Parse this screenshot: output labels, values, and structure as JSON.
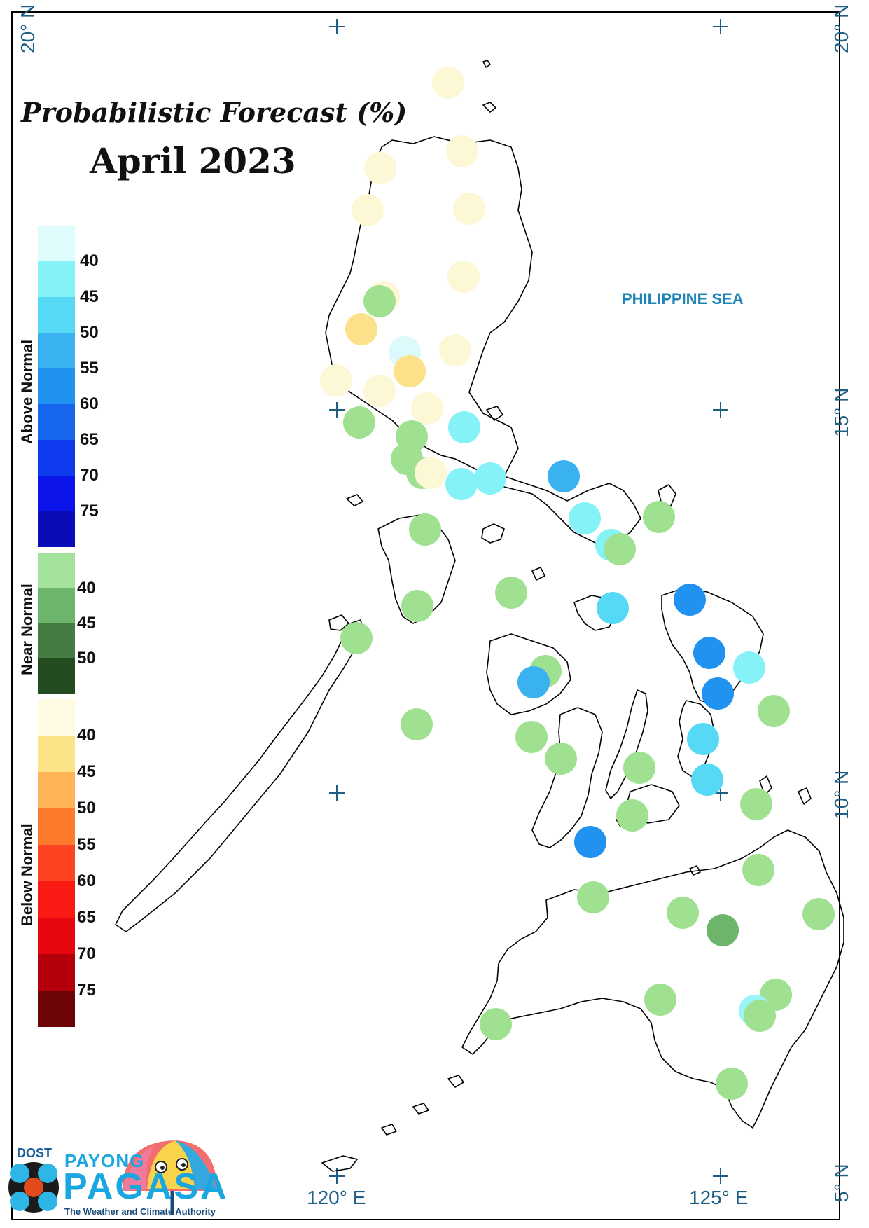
{
  "title": {
    "line1": "Probabilistic Forecast (%)",
    "line2": "April 2023"
  },
  "sea_label": "PHILIPPINE SEA",
  "coordinates": {
    "lat_20_left": "20° N",
    "lat_20_right": "20° N",
    "lat_15": "15° N",
    "lat_10": "10° N",
    "lat_5": "5° N",
    "lon_120": "120° E",
    "lon_125": "125° E"
  },
  "legend": {
    "above_normal": {
      "label": "Above Normal",
      "ticks": [
        "40",
        "45",
        "50",
        "55",
        "60",
        "65",
        "70",
        "75"
      ],
      "colors": [
        "#dffdfd",
        "#84f2f6",
        "#55d9f5",
        "#3bb2f0",
        "#2192ef",
        "#1667ee",
        "#0f3bee",
        "#0b14ea",
        "#0a0cb8"
      ]
    },
    "near_normal": {
      "label": "Near Normal",
      "ticks": [
        "40",
        "45",
        "50"
      ],
      "colors": [
        "#a3e39b",
        "#6cb56b",
        "#447c43",
        "#234d20"
      ]
    },
    "below_normal": {
      "label": "Below Normal",
      "ticks": [
        "40",
        "45",
        "50",
        "55",
        "60",
        "65",
        "70",
        "75"
      ],
      "colors": [
        "#fefbe2",
        "#fde388",
        "#fdb356",
        "#fd7a2d",
        "#fc4422",
        "#f91a14",
        "#e5060e",
        "#b3000b",
        "#6d0408"
      ]
    }
  },
  "logo": {
    "agency": "DOST",
    "name_top": "PAYONG",
    "name_main": "PAGASA",
    "tagline": "The Weather and Climate Authority"
  },
  "stations": [
    {
      "category": "below",
      "level": "<40",
      "color": "#fcf8d6"
    },
    {
      "category": "below",
      "level": "<40",
      "color": "#fcf8d6"
    },
    {
      "category": "below",
      "level": "<40",
      "color": "#fcf8d6"
    },
    {
      "category": "below",
      "level": "<40",
      "color": "#fcf8d6"
    },
    {
      "category": "below",
      "level": "<40",
      "color": "#fcf8d6"
    },
    {
      "category": "below",
      "level": "<40",
      "color": "#fcf8d6"
    },
    {
      "category": "below",
      "level": "<40",
      "color": "#fcf8d6"
    },
    {
      "category": "near",
      "level": "<40",
      "color": "#9fe191"
    },
    {
      "category": "below",
      "level": "45",
      "color": "#fde08a"
    },
    {
      "category": "above",
      "level": "<40",
      "color": "#dcf9fb"
    },
    {
      "category": "below",
      "level": "45",
      "color": "#fde08a"
    },
    {
      "category": "below",
      "level": "<40",
      "color": "#fcf8d6"
    },
    {
      "category": "below",
      "level": "<40",
      "color": "#fcf8d6"
    },
    {
      "category": "below",
      "level": "<40",
      "color": "#fcf8d6"
    },
    {
      "category": "below",
      "level": "<40",
      "color": "#fcf8d6"
    },
    {
      "category": "near",
      "level": "<40",
      "color": "#9fe191"
    },
    {
      "category": "near",
      "level": "<40",
      "color": "#9fe191"
    },
    {
      "category": "near",
      "level": "<40",
      "color": "#9fe191"
    },
    {
      "category": "near",
      "level": "<40",
      "color": "#9fe191"
    },
    {
      "category": "below",
      "level": "<40",
      "color": "#fcf8d6"
    },
    {
      "category": "above",
      "level": "40",
      "color": "#84f2f6"
    },
    {
      "category": "above",
      "level": "40",
      "color": "#84f2f6"
    },
    {
      "category": "above",
      "level": "40",
      "color": "#84f2f6"
    },
    {
      "category": "above",
      "level": "50",
      "color": "#3bb2f0"
    },
    {
      "category": "near",
      "level": "<40",
      "color": "#9fe191"
    },
    {
      "category": "above",
      "level": "40",
      "color": "#84f2f6"
    },
    {
      "category": "above",
      "level": "40",
      "color": "#84f2f6"
    },
    {
      "category": "near",
      "level": "<40",
      "color": "#9fe191"
    },
    {
      "category": "near",
      "level": "<40",
      "color": "#9fe191"
    },
    {
      "category": "near",
      "level": "<40",
      "color": "#9fe191"
    },
    {
      "category": "near",
      "level": "<40",
      "color": "#9fe191"
    },
    {
      "category": "above",
      "level": "45",
      "color": "#55d9f5"
    },
    {
      "category": "above",
      "level": "55",
      "color": "#2192ef"
    },
    {
      "category": "near",
      "level": "<40",
      "color": "#9fe191"
    },
    {
      "category": "near",
      "level": "<40",
      "color": "#9fe191"
    },
    {
      "category": "above",
      "level": "50",
      "color": "#3bb2f0"
    },
    {
      "category": "above",
      "level": "55",
      "color": "#2192ef"
    },
    {
      "category": "above",
      "level": "40",
      "color": "#84f2f6"
    },
    {
      "category": "above",
      "level": "55",
      "color": "#2192ef"
    },
    {
      "category": "near",
      "level": "<40",
      "color": "#9fe191"
    },
    {
      "category": "near",
      "level": "<40",
      "color": "#9fe191"
    },
    {
      "category": "near",
      "level": "<40",
      "color": "#9fe191"
    },
    {
      "category": "above",
      "level": "45",
      "color": "#55d9f5"
    },
    {
      "category": "near",
      "level": "<40",
      "color": "#9fe191"
    },
    {
      "category": "above",
      "level": "45",
      "color": "#55d9f5"
    },
    {
      "category": "near",
      "level": "<40",
      "color": "#9fe191"
    },
    {
      "category": "near",
      "level": "<40",
      "color": "#9fe191"
    },
    {
      "category": "near",
      "level": "<40",
      "color": "#9fe191"
    },
    {
      "category": "above",
      "level": "55",
      "color": "#2192ef"
    },
    {
      "category": "near",
      "level": "<40",
      "color": "#9fe191"
    },
    {
      "category": "near",
      "level": "<40",
      "color": "#9fe191"
    },
    {
      "category": "near",
      "level": "<40",
      "color": "#9fe191"
    },
    {
      "category": "near",
      "level": "<40",
      "color": "#9fe191"
    },
    {
      "category": "near",
      "level": "45",
      "color": "#6cb56b"
    },
    {
      "category": "near",
      "level": "<40",
      "color": "#9fe191"
    },
    {
      "category": "near",
      "level": "<40",
      "color": "#9fe191"
    },
    {
      "category": "near",
      "level": "<40",
      "color": "#9fe191"
    },
    {
      "category": "near",
      "level": "<40",
      "color": "#9fe191"
    },
    {
      "category": "above",
      "level": "<40",
      "color": "#9af4f8"
    },
    {
      "category": "near",
      "level": "<40",
      "color": "#9fe191"
    }
  ]
}
